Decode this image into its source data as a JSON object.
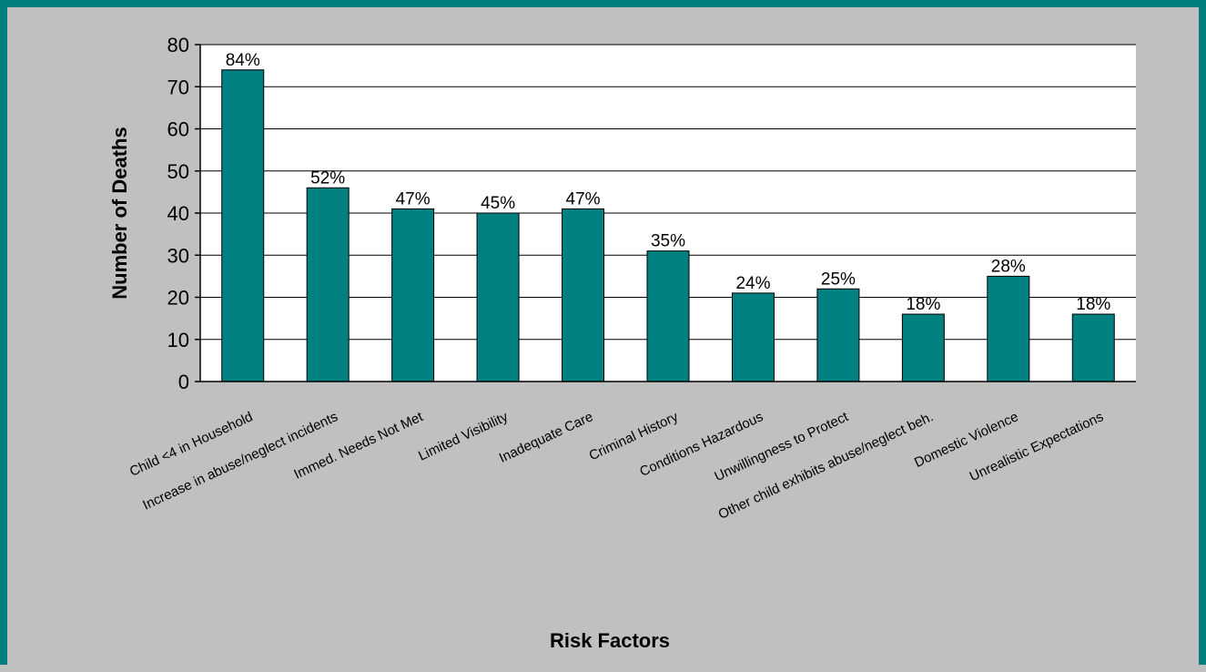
{
  "chart_data": {
    "type": "bar",
    "title": "",
    "xlabel": "Risk Factors",
    "ylabel": "Number of Deaths",
    "ylim": [
      0,
      80
    ],
    "yticks": [
      0,
      10,
      20,
      30,
      40,
      50,
      60,
      70,
      80
    ],
    "grid": true,
    "legend": "none",
    "bar_color": "#008080",
    "plot_background": "#ffffff",
    "page_background": "#c0c0c0",
    "border_color": "#007f7f",
    "categories": [
      "Child <4 in Household",
      "Increase in  abuse/neglect incidents",
      "Immed. Needs Not Met",
      "Limited Visibility",
      "Inadequate Care",
      "Criminal History",
      "Conditions Hazardous",
      "Unwillingness to Protect",
      "Other child exhibits abuse/neglect beh.",
      "Domestic Violence",
      "Unrealistic Expectations"
    ],
    "values": [
      74,
      46,
      41,
      40,
      41,
      31,
      21,
      22,
      16,
      25,
      16
    ],
    "data_labels": [
      "84%",
      "52%",
      "47%",
      "45%",
      "47%",
      "35%",
      "24%",
      "25%",
      "18%",
      "28%",
      "18%"
    ]
  }
}
